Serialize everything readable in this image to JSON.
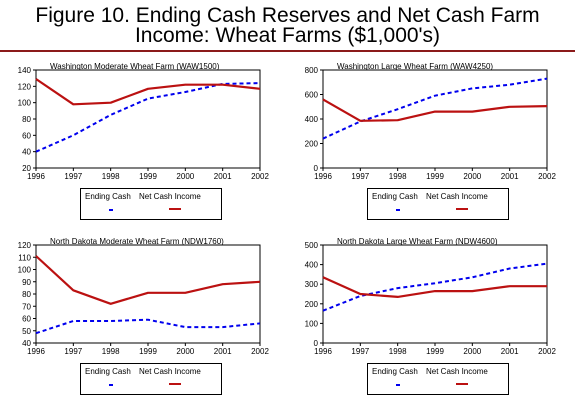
{
  "figure": {
    "title_line1": "Figure 10. Ending Cash Reserves and Net Cash Farm",
    "title_line2": "Income:  Wheat Farms ($1,000's)"
  },
  "colors": {
    "cash_reserves": "#0000ee",
    "net_cash_income": "#bb1111",
    "rule": "#8b1a1a"
  },
  "legend": {
    "cash_label": "Ending Cash",
    "income_label": "Net Cash Income"
  },
  "chart_data": [
    {
      "type": "line",
      "title": "Washington Moderate Wheat Farm (WAW1500)",
      "x": [
        "1996",
        "1997",
        "1998",
        "1999",
        "2000",
        "2001",
        "2002"
      ],
      "ylim": [
        20,
        140
      ],
      "yticks": [
        "20",
        "40",
        "60",
        "80",
        "100",
        "120",
        "140"
      ],
      "series": [
        {
          "name": "Ending Cash",
          "values": [
            40,
            60,
            85,
            105,
            113,
            123,
            124
          ]
        },
        {
          "name": "Net Cash Income",
          "values": [
            129,
            98,
            100,
            117,
            122,
            122,
            117
          ]
        }
      ]
    },
    {
      "type": "line",
      "title": "Washington Large Wheat Farm (WAW4250)",
      "x": [
        "1996",
        "1997",
        "1998",
        "1999",
        "2000",
        "2001",
        "2002"
      ],
      "ylim": [
        0,
        800
      ],
      "yticks": [
        "0",
        "200",
        "400",
        "600",
        "800"
      ],
      "series": [
        {
          "name": "Ending Cash",
          "values": [
            240,
            380,
            480,
            590,
            650,
            680,
            730
          ]
        },
        {
          "name": "Net Cash Income",
          "values": [
            560,
            385,
            390,
            460,
            460,
            500,
            505
          ]
        }
      ]
    },
    {
      "type": "line",
      "title": "North Dakota Moderate Wheat Farm (NDW1760)",
      "x": [
        "1996",
        "1997",
        "1998",
        "1999",
        "2000",
        "2001",
        "2002"
      ],
      "ylim": [
        40,
        120
      ],
      "yticks": [
        "40",
        "50",
        "60",
        "70",
        "80",
        "90",
        "100",
        "110",
        "120"
      ],
      "series": [
        {
          "name": "Ending Cash",
          "values": [
            48,
            58,
            58,
            59,
            53,
            53,
            56
          ]
        },
        {
          "name": "Net Cash Income",
          "values": [
            111,
            83,
            72,
            81,
            81,
            88,
            90
          ]
        }
      ]
    },
    {
      "type": "line",
      "title": "North Dakota Large Wheat Farm (NDW4600)",
      "x": [
        "1996",
        "1997",
        "1998",
        "1999",
        "2000",
        "2001",
        "2002"
      ],
      "ylim": [
        0,
        500
      ],
      "yticks": [
        "0",
        "100",
        "200",
        "300",
        "400",
        "500"
      ],
      "series": [
        {
          "name": "Ending Cash",
          "values": [
            165,
            240,
            280,
            305,
            335,
            380,
            405
          ]
        },
        {
          "name": "Net Cash Income",
          "values": [
            335,
            250,
            235,
            265,
            265,
            290,
            290
          ]
        }
      ]
    }
  ]
}
